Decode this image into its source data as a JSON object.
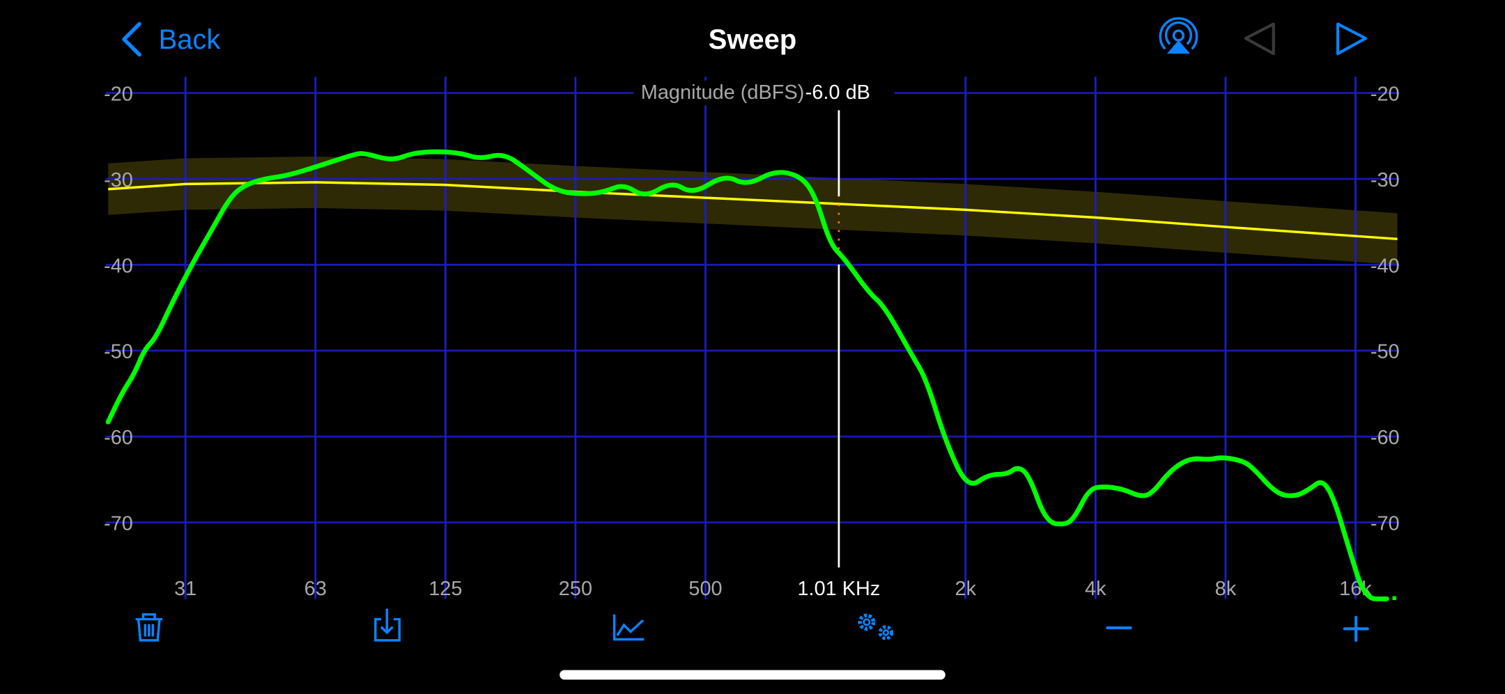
{
  "nav": {
    "back_label": "Back",
    "title": "Sweep",
    "icons": [
      "chevron-left-icon",
      "airplay-icon",
      "previous-icon",
      "next-icon"
    ]
  },
  "cursor": {
    "axis_label": "Magnitude (dBFS)",
    "value": "-6.0 dB",
    "frequency_label": "1.01 KHz",
    "frequency_hz": 1010
  },
  "toolbar": {
    "icons": [
      "trash-icon",
      "download-icon",
      "chart-icon",
      "settings-icon",
      "zoom-out-icon",
      "zoom-in-icon"
    ]
  },
  "colors": {
    "accent": "#0a84ff",
    "grid": "#1c1cc8",
    "measured": "#00ff00",
    "target": "#ffff00",
    "band": "#2e2a05",
    "cursor": "#ffffff"
  },
  "chart_data": {
    "type": "line",
    "x_scale": "log",
    "xlim": [
      20,
      20000
    ],
    "ylim": [
      -79,
      -18
    ],
    "grid": true,
    "y_ticks": [
      -20,
      -30,
      -40,
      -50,
      -60,
      -70
    ],
    "x_tick_labels": [
      "31",
      "63",
      "125",
      "250",
      "500",
      "1.01 KHz",
      "2k",
      "4k",
      "8k",
      "16k"
    ],
    "x_ticks_hz": [
      31.25,
      62.5,
      125,
      250,
      500,
      1010,
      2000,
      4000,
      8000,
      16000
    ],
    "series": [
      {
        "role": "measured",
        "color": "#00ff00",
        "x": [
          20.7,
          22.3,
          23.8,
          25.1,
          26.7,
          29.2,
          32.4,
          35.9,
          39.7,
          42.9,
          47.5,
          54,
          63.6,
          77.3,
          81.3,
          93.9,
          105,
          119.4,
          135.7,
          150.3,
          170.7,
          194.1,
          226.3,
          263.9,
          292.2,
          323.8,
          362.3,
          418.1,
          467.8,
          554,
          623,
          726,
          834,
          900,
          972,
          1050,
          1193,
          1301,
          1502,
          1622,
          1796,
          2021,
          2262,
          2505,
          2636,
          2803,
          3074,
          3406,
          3583,
          3870,
          4178,
          4628,
          5073,
          5397,
          5975,
          6622,
          7337,
          7800,
          8550,
          9142,
          10491,
          11623,
          12548,
          13410,
          14260,
          15398,
          16797,
          18897
        ],
        "y": [
          -58.3,
          -54.9,
          -52.7,
          -49.9,
          -48.5,
          -44.3,
          -39.9,
          -36,
          -32.1,
          -30.7,
          -30,
          -29.6,
          -28.5,
          -27.1,
          -27,
          -27.9,
          -27,
          -26.8,
          -27,
          -27.7,
          -27,
          -29,
          -31.5,
          -31.8,
          -31.5,
          -30.6,
          -32.2,
          -30.3,
          -31.8,
          -29.5,
          -30.8,
          -29,
          -29.7,
          -32.1,
          -37.6,
          -39.3,
          -43.2,
          -44.9,
          -50.5,
          -53.3,
          -60.5,
          -66.1,
          -64.4,
          -64.4,
          -63.5,
          -64.4,
          -70,
          -70.3,
          -69.4,
          -66.1,
          -65.8,
          -66.1,
          -67,
          -66.7,
          -63.9,
          -62.5,
          -62.7,
          -62.4,
          -62.7,
          -63.3,
          -66.7,
          -67,
          -66.1,
          -65,
          -67.2,
          -72.8,
          -78.9,
          -78.9
        ]
      },
      {
        "role": "target",
        "color": "#ffff00",
        "x": [
          20.7,
          31.25,
          62.5,
          125,
          250,
          500,
          1000,
          2000,
          4000,
          8000,
          20000
        ],
        "y": [
          -31.2,
          -30.6,
          -30.4,
          -30.7,
          -31.5,
          -32.2,
          -32.9,
          -33.6,
          -34.5,
          -35.6,
          -37.0
        ],
        "band_db": 3
      }
    ]
  }
}
